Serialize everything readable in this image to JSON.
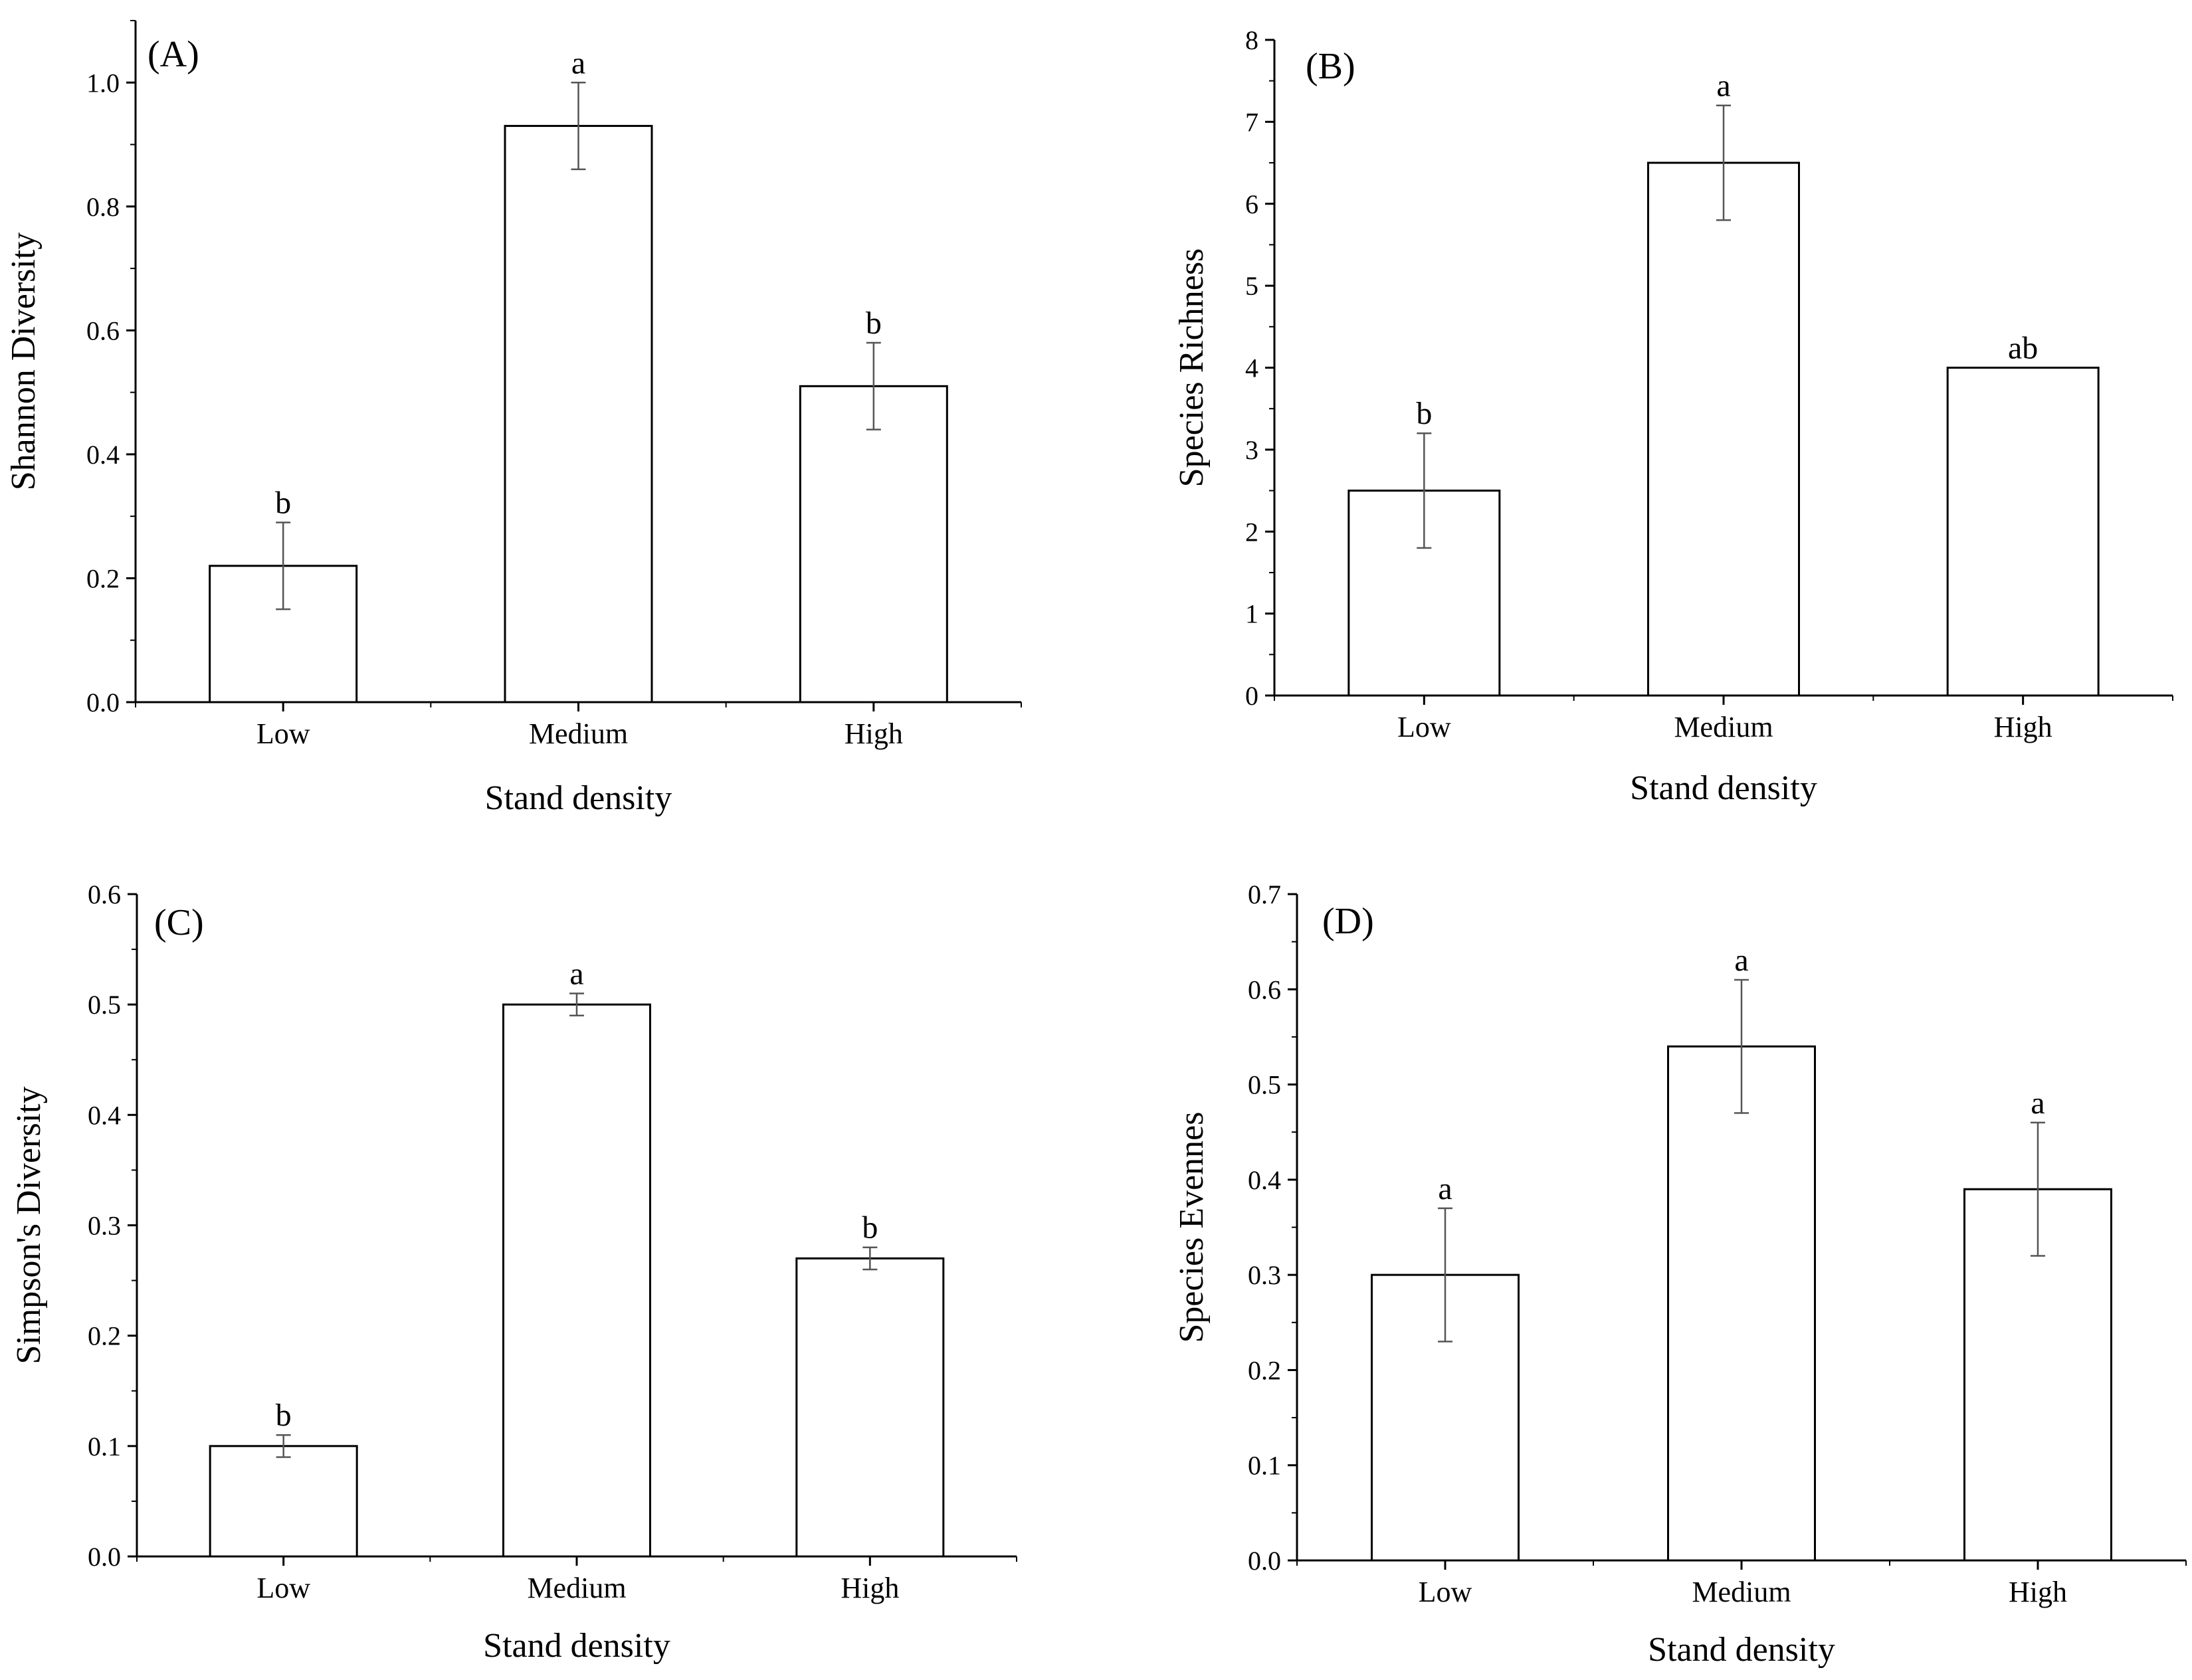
{
  "chart_data": [
    {
      "type": "bar",
      "title": "(A)",
      "xlabel": "Stand density",
      "ylabel": "Shannon Diversity",
      "categories": [
        "Low",
        "Medium",
        "High"
      ],
      "values": [
        0.22,
        0.93,
        0.51
      ],
      "errors": [
        0.07,
        0.07,
        0.07
      ],
      "significance": [
        "b",
        "a",
        "b"
      ],
      "ylim": [
        0,
        1.1
      ],
      "yticks": [
        0.0,
        0.2,
        0.4,
        0.6,
        0.8,
        1.0
      ],
      "ytick_labels": [
        "0.0",
        "0.2",
        "0.4",
        "0.6",
        "0.8",
        "1.0"
      ]
    },
    {
      "type": "bar",
      "title": "(B)",
      "xlabel": "Stand density",
      "ylabel": "Species Richness",
      "categories": [
        "Low",
        "Medium",
        "High"
      ],
      "values": [
        2.5,
        6.5,
        4.0
      ],
      "errors": [
        0.7,
        0.7,
        0.0
      ],
      "significance": [
        "b",
        "a",
        "ab"
      ],
      "ylim": [
        0,
        8
      ],
      "yticks": [
        0,
        1,
        2,
        3,
        4,
        5,
        6,
        7,
        8
      ],
      "ytick_labels": [
        "0",
        "1",
        "2",
        "3",
        "4",
        "5",
        "6",
        "7",
        "8"
      ]
    },
    {
      "type": "bar",
      "title": "(C)",
      "xlabel": "Stand density",
      "ylabel": "Simpson's Diversity",
      "categories": [
        "Low",
        "Medium",
        "High"
      ],
      "values": [
        0.1,
        0.5,
        0.27
      ],
      "errors": [
        0.01,
        0.01,
        0.01
      ],
      "significance": [
        "b",
        "a",
        "b"
      ],
      "ylim": [
        0,
        0.6
      ],
      "yticks": [
        0.0,
        0.1,
        0.2,
        0.3,
        0.4,
        0.5,
        0.6
      ],
      "ytick_labels": [
        "0.0",
        "0.1",
        "0.2",
        "0.3",
        "0.4",
        "0.5",
        "0.6"
      ]
    },
    {
      "type": "bar",
      "title": "(D)",
      "xlabel": "Stand density",
      "ylabel": "Species Evennes",
      "categories": [
        "Low",
        "Medium",
        "High"
      ],
      "values": [
        0.3,
        0.54,
        0.39
      ],
      "errors": [
        0.07,
        0.07,
        0.07
      ],
      "significance": [
        "a",
        "a",
        "a"
      ],
      "ylim": [
        0,
        0.7
      ],
      "yticks": [
        0.0,
        0.1,
        0.2,
        0.3,
        0.4,
        0.5,
        0.6,
        0.7
      ],
      "ytick_labels": [
        "0.0",
        "0.1",
        "0.2",
        "0.3",
        "0.4",
        "0.5",
        "0.6",
        "0.7"
      ]
    }
  ]
}
